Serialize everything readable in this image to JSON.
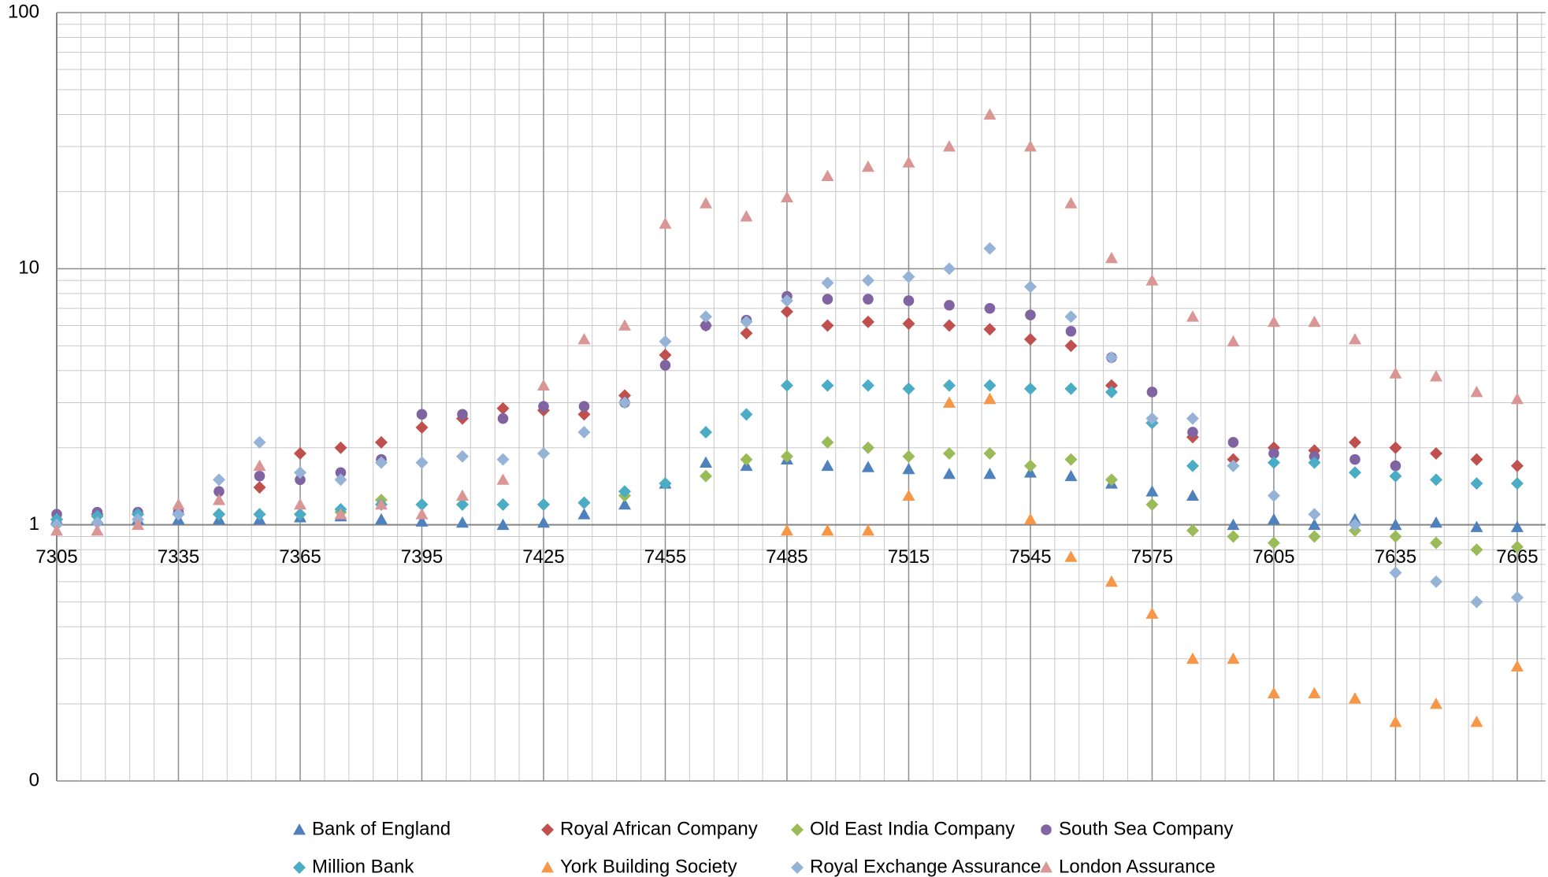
{
  "chart_data": {
    "type": "scatter",
    "log_y": true,
    "grid": true,
    "minor_grid": true,
    "legend": "bottom",
    "xaxis_at": 1,
    "xlim": [
      7305,
      7672
    ],
    "ylim": [
      0.1,
      100
    ],
    "xticks": [
      7305,
      7335,
      7365,
      7395,
      7425,
      7455,
      7485,
      7515,
      7545,
      7575,
      7605,
      7635,
      7665
    ],
    "yticks": [
      {
        "value": 0.1,
        "label": "0"
      },
      1,
      10,
      100
    ],
    "x": [
      7305,
      7315,
      7325,
      7335,
      7345,
      7355,
      7365,
      7375,
      7385,
      7395,
      7405,
      7415,
      7425,
      7435,
      7445,
      7455,
      7465,
      7475,
      7485,
      7495,
      7505,
      7515,
      7525,
      7535,
      7545,
      7555,
      7565,
      7575,
      7585,
      7595,
      7605,
      7615,
      7625,
      7635,
      7645,
      7655,
      7665
    ],
    "series": [
      {
        "name": "Bank of England",
        "color": "#4f81bd",
        "marker": "triangle",
        "values": [
          1.05,
          1.05,
          1.05,
          1.05,
          1.05,
          1.05,
          1.07,
          1.08,
          1.05,
          1.03,
          1.02,
          1.0,
          1.02,
          1.1,
          1.2,
          1.45,
          1.75,
          1.7,
          1.8,
          1.7,
          1.68,
          1.65,
          1.58,
          1.58,
          1.6,
          1.55,
          1.45,
          1.35,
          1.3,
          1.0,
          1.05,
          1.0,
          1.05,
          1.0,
          1.02,
          0.98,
          0.98
        ]
      },
      {
        "name": "Royal African Company",
        "color": "#c0504d",
        "marker": "diamond",
        "values": [
          1.05,
          1.1,
          1.1,
          1.1,
          1.1,
          1.4,
          1.9,
          2.0,
          2.1,
          2.4,
          2.6,
          2.85,
          2.8,
          2.7,
          3.2,
          4.6,
          6.0,
          5.6,
          6.8,
          6.0,
          6.2,
          6.1,
          6.0,
          5.8,
          5.3,
          5.0,
          3.5,
          2.5,
          2.2,
          1.8,
          2.0,
          1.95,
          2.1,
          2.0,
          1.9,
          1.8,
          1.7
        ]
      },
      {
        "name": "Old East India Company",
        "color": "#9bbb59",
        "marker": "diamond",
        "values": [
          1.05,
          1.08,
          1.1,
          1.1,
          1.1,
          1.1,
          1.1,
          1.12,
          1.25,
          1.2,
          1.2,
          1.2,
          1.2,
          1.22,
          1.3,
          1.45,
          1.55,
          1.8,
          1.85,
          2.1,
          2.0,
          1.85,
          1.9,
          1.9,
          1.7,
          1.8,
          1.5,
          1.2,
          0.95,
          0.9,
          0.85,
          0.9,
          0.95,
          0.9,
          0.85,
          0.8,
          0.82
        ]
      },
      {
        "name": "South Sea Company",
        "color": "#8064a2",
        "marker": "circle",
        "values": [
          1.1,
          1.12,
          1.12,
          1.12,
          1.35,
          1.55,
          1.5,
          1.6,
          1.8,
          2.7,
          2.7,
          2.6,
          2.9,
          2.9,
          3.0,
          4.2,
          6.0,
          6.3,
          7.8,
          7.6,
          7.6,
          7.5,
          7.2,
          7.0,
          6.6,
          5.7,
          4.5,
          3.3,
          2.3,
          2.1,
          1.9,
          1.85,
          1.8,
          1.7,
          null,
          null,
          null
        ]
      },
      {
        "name": "Million Bank",
        "color": "#4bacc6",
        "marker": "diamond",
        "values": [
          1.05,
          1.08,
          1.1,
          1.1,
          1.1,
          1.1,
          1.1,
          1.15,
          1.2,
          1.2,
          1.2,
          1.2,
          1.2,
          1.22,
          1.35,
          1.45,
          2.3,
          2.7,
          3.5,
          3.5,
          3.5,
          3.4,
          3.5,
          3.5,
          3.4,
          3.4,
          3.3,
          2.5,
          1.7,
          1.7,
          1.75,
          1.75,
          1.6,
          1.55,
          1.5,
          1.45,
          1.45
        ]
      },
      {
        "name": "York Building Society",
        "color": "#f79646",
        "marker": "triangle",
        "values": [
          null,
          null,
          null,
          null,
          null,
          null,
          null,
          null,
          null,
          null,
          null,
          null,
          null,
          null,
          null,
          null,
          null,
          null,
          0.95,
          0.95,
          0.95,
          1.3,
          3.0,
          3.1,
          1.05,
          0.75,
          0.6,
          0.45,
          0.3,
          0.3,
          0.22,
          0.22,
          0.21,
          0.17,
          0.2,
          0.17,
          0.28
        ]
      },
      {
        "name": "Royal Exchange Assurance",
        "color": "#95b3d7",
        "marker": "diamond",
        "values": [
          1.0,
          1.02,
          1.05,
          1.1,
          1.5,
          2.1,
          1.6,
          1.5,
          1.75,
          1.75,
          1.85,
          1.8,
          1.9,
          2.3,
          3.0,
          5.2,
          6.5,
          6.2,
          7.5,
          8.8,
          9.0,
          9.3,
          10,
          12,
          8.5,
          6.5,
          4.5,
          2.6,
          2.6,
          1.7,
          1.3,
          1.1,
          1.0,
          0.65,
          0.6,
          0.5,
          0.52
        ]
      },
      {
        "name": "London Assurance",
        "color": "#d99694",
        "marker": "triangle",
        "values": [
          0.95,
          0.95,
          1.0,
          1.2,
          1.25,
          1.7,
          1.2,
          1.1,
          1.2,
          1.1,
          1.3,
          1.5,
          3.5,
          5.3,
          6.0,
          15,
          18,
          16,
          19,
          23,
          25,
          26,
          30,
          40,
          30,
          18,
          11,
          9,
          6.5,
          5.2,
          6.2,
          6.2,
          5.3,
          3.9,
          3.8,
          3.3,
          3.1
        ]
      }
    ]
  }
}
